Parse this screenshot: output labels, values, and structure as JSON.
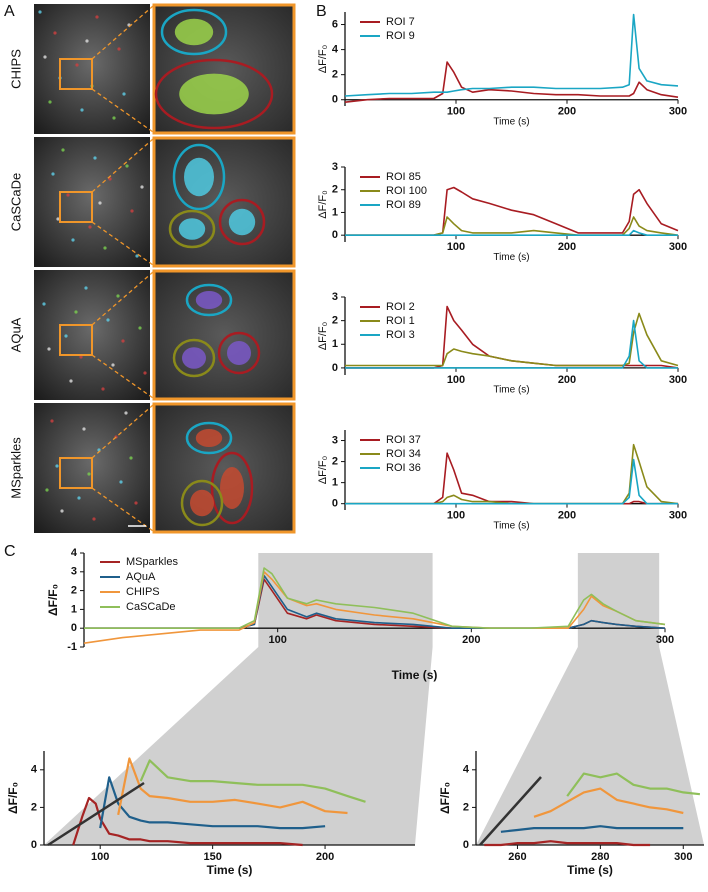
{
  "panel_labels": [
    "A",
    "B",
    "C"
  ],
  "image_labels": [
    "CHIPS",
    "CaSCaDe",
    "AQuA",
    "MSparkles"
  ],
  "chart_data": [
    {
      "type": "line",
      "x_label": "Time (s)",
      "y_label": "ΔF/F₀",
      "xlim": [
        0,
        300
      ],
      "xticks": [
        100,
        200,
        300
      ],
      "ylim": [
        -0.5,
        7
      ],
      "yticks": [
        0,
        2,
        4,
        6
      ],
      "legend": "upper left",
      "x": [
        0,
        20,
        40,
        60,
        80,
        88,
        92,
        98,
        105,
        115,
        130,
        150,
        170,
        190,
        210,
        230,
        250,
        256,
        260,
        265,
        272,
        285,
        300
      ],
      "series": [
        {
          "name": "ROI 7",
          "color": "#a81c22",
          "values": [
            -0.2,
            0,
            0.1,
            0.1,
            0.1,
            0.5,
            3.0,
            2.2,
            1.0,
            0.6,
            0.8,
            0.7,
            0.5,
            0.4,
            0.4,
            0.3,
            0.3,
            0.3,
            0.5,
            1.4,
            0.8,
            0.4,
            0.2
          ]
        },
        {
          "name": "ROI 9",
          "color": "#1aa6c4",
          "values": [
            0.3,
            0.4,
            0.5,
            0.5,
            0.6,
            0.6,
            0.6,
            0.7,
            0.8,
            0.9,
            0.9,
            1.0,
            1.0,
            0.9,
            0.9,
            0.9,
            1.0,
            1.2,
            6.8,
            2.5,
            1.5,
            1.2,
            1.1
          ]
        }
      ]
    },
    {
      "type": "line",
      "x_label": "Time (s)",
      "y_label": "ΔF/F₀",
      "xlim": [
        0,
        300
      ],
      "xticks": [
        100,
        200,
        300
      ],
      "ylim": [
        -0.3,
        3
      ],
      "yticks": [
        0,
        1,
        2,
        3
      ],
      "legend": "upper left",
      "x": [
        0,
        20,
        40,
        60,
        80,
        88,
        92,
        98,
        105,
        115,
        130,
        150,
        170,
        190,
        210,
        230,
        250,
        256,
        260,
        265,
        272,
        285,
        300
      ],
      "series": [
        {
          "name": "ROI 85",
          "color": "#a81c22",
          "values": [
            0,
            0,
            0,
            0,
            0,
            0.1,
            2.0,
            2.1,
            1.9,
            1.6,
            1.4,
            1.1,
            0.9,
            0.5,
            0.1,
            0.1,
            0.1,
            0.6,
            1.8,
            2.0,
            1.4,
            0.5,
            0.2
          ]
        },
        {
          "name": "ROI 100",
          "color": "#8a8a1a",
          "values": [
            0,
            0,
            0,
            0,
            0,
            0.1,
            0.8,
            0.5,
            0.2,
            0.1,
            0.1,
            0.1,
            0.2,
            0.1,
            0,
            0,
            0,
            0.3,
            0.8,
            0.4,
            0.2,
            0.1,
            0
          ]
        },
        {
          "name": "ROI 89",
          "color": "#1aa6c4",
          "values": [
            0,
            0,
            0,
            0,
            0,
            0,
            0,
            0,
            0,
            0,
            0,
            0,
            0,
            0,
            0,
            0,
            0,
            0,
            0.2,
            0.1,
            0,
            0,
            0
          ]
        }
      ]
    },
    {
      "type": "line",
      "x_label": "Time (s)",
      "y_label": "ΔF/F₀",
      "xlim": [
        0,
        300
      ],
      "xticks": [
        100,
        200,
        300
      ],
      "ylim": [
        -0.3,
        3
      ],
      "yticks": [
        0,
        1,
        2,
        3
      ],
      "legend": "upper left",
      "x": [
        0,
        20,
        40,
        60,
        80,
        88,
        92,
        98,
        105,
        115,
        130,
        150,
        170,
        190,
        210,
        230,
        250,
        256,
        260,
        265,
        272,
        285,
        300
      ],
      "series": [
        {
          "name": "ROI 2",
          "color": "#a81c22",
          "values": [
            0,
            0,
            0,
            0,
            0,
            0.1,
            2.6,
            2.0,
            1.6,
            1.0,
            0.5,
            0.3,
            0.2,
            0.1,
            0.1,
            0.1,
            0.1,
            0.1,
            0.1,
            0.1,
            0.1,
            0.1,
            0
          ]
        },
        {
          "name": "ROI 1",
          "color": "#8a8a1a",
          "values": [
            0.1,
            0.1,
            0.1,
            0.1,
            0.1,
            0.1,
            0.6,
            0.8,
            0.7,
            0.6,
            0.5,
            0.3,
            0.2,
            0.1,
            0.1,
            0.1,
            0.1,
            0.2,
            1.5,
            2.3,
            1.4,
            0.3,
            0.1
          ]
        },
        {
          "name": "ROI 3",
          "color": "#1aa6c4",
          "values": [
            0,
            0,
            0,
            0,
            0,
            0,
            0,
            0,
            0,
            0,
            0,
            0,
            0,
            0,
            0,
            0,
            0,
            0.5,
            2.0,
            0.3,
            0,
            0,
            0
          ]
        }
      ]
    },
    {
      "type": "line",
      "x_label": "Time (s)",
      "y_label": "ΔF/F₀",
      "xlim": [
        0,
        300
      ],
      "xticks": [
        100,
        200,
        300
      ],
      "ylim": [
        -0.3,
        3.5
      ],
      "yticks": [
        0,
        1,
        2,
        3
      ],
      "legend": "upper left",
      "x": [
        0,
        20,
        40,
        60,
        80,
        88,
        92,
        98,
        105,
        115,
        130,
        150,
        170,
        190,
        210,
        230,
        250,
        256,
        260,
        265,
        272,
        285,
        300
      ],
      "series": [
        {
          "name": "ROI 37",
          "color": "#a81c22",
          "values": [
            0,
            0,
            0,
            0,
            0,
            0.3,
            2.4,
            1.6,
            0.5,
            0.4,
            0.1,
            0.1,
            0,
            0,
            0,
            0,
            0,
            0,
            0.1,
            0.1,
            0,
            0,
            0
          ]
        },
        {
          "name": "ROI 34",
          "color": "#8a8a1a",
          "values": [
            0,
            0,
            0,
            0,
            0,
            0.1,
            0.3,
            0.4,
            0.2,
            0.1,
            0.1,
            0,
            0,
            0,
            0,
            0,
            0,
            0.5,
            2.8,
            2.0,
            0.8,
            0.1,
            0
          ]
        },
        {
          "name": "ROI 36",
          "color": "#1aa6c4",
          "values": [
            0,
            0,
            0,
            0,
            0,
            0,
            0,
            0,
            0,
            0,
            0,
            0,
            0,
            0,
            0,
            0,
            0,
            0.3,
            2.1,
            0.4,
            0,
            0,
            0
          ]
        }
      ]
    },
    {
      "type": "line",
      "x_label": "Time (s)",
      "y_label": "ΔF/F₀",
      "xlim": [
        0,
        300
      ],
      "xticks": [
        100,
        200,
        300
      ],
      "ylim": [
        -1,
        4
      ],
      "yticks": [
        -1,
        0,
        1,
        2,
        3,
        4
      ],
      "legend": "upper left",
      "highlights": [
        [
          90,
          180
        ],
        [
          255,
          297
        ]
      ],
      "x": [
        0,
        20,
        40,
        60,
        80,
        88,
        93,
        97,
        105,
        115,
        120,
        130,
        150,
        170,
        190,
        210,
        230,
        250,
        258,
        262,
        268,
        275,
        285,
        300
      ],
      "series": [
        {
          "name": "MSparkles",
          "color": "#a52424",
          "values": [
            0,
            0,
            0,
            0,
            0,
            0.2,
            2.6,
            2.0,
            0.8,
            0.5,
            0.7,
            0.4,
            0.2,
            0.1,
            0,
            0,
            0,
            0,
            0.2,
            0.4,
            0.3,
            0.2,
            0.1,
            0
          ]
        },
        {
          "name": "AQuA",
          "color": "#1f5f8b",
          "values": [
            0,
            0,
            0,
            0,
            0,
            0.2,
            2.8,
            2.2,
            1.0,
            0.6,
            0.8,
            0.5,
            0.3,
            0.2,
            0,
            0,
            0,
            0,
            0.2,
            0.4,
            0.3,
            0.2,
            0.1,
            0
          ]
        },
        {
          "name": "CHIPS",
          "color": "#f0963c",
          "values": [
            -0.8,
            -0.5,
            -0.3,
            -0.1,
            -0.1,
            0.3,
            3.0,
            2.6,
            1.6,
            1.2,
            1.3,
            1.0,
            0.7,
            0.5,
            0.1,
            0,
            0,
            0,
            1.0,
            1.7,
            1.2,
            0.9,
            0.4,
            0.2
          ]
        },
        {
          "name": "CaSCaDe",
          "color": "#8fbf5a",
          "values": [
            0,
            0,
            0,
            0,
            0,
            0.4,
            3.2,
            2.9,
            1.6,
            1.3,
            1.5,
            1.3,
            1.1,
            0.8,
            0.1,
            0,
            0,
            0.1,
            1.5,
            1.8,
            1.3,
            0.9,
            0.4,
            0.2
          ]
        }
      ]
    },
    {
      "type": "line",
      "x_label": "Time (s)",
      "y_label": "ΔF/F₀",
      "xlim": [
        75,
        240
      ],
      "xticks": [
        100,
        150,
        200
      ],
      "ylim": [
        0,
        5
      ],
      "yticks": [
        0,
        2,
        4
      ],
      "x": [
        88,
        92,
        95,
        98,
        100,
        104,
        108,
        113,
        118,
        122,
        130,
        140,
        150,
        160,
        170,
        180,
        190,
        200,
        210,
        218
      ],
      "series": [
        {
          "color": "#a52424",
          "values": [
            0,
            1.5,
            2.5,
            2.2,
            1.4,
            0.6,
            0.5,
            0.3,
            0.3,
            0.2,
            0.2,
            0.1,
            0.1,
            0.1,
            0.1,
            0.1,
            0,
            null,
            null,
            null
          ]
        },
        {
          "color": "#1f5f8b",
          "values": [
            null,
            null,
            null,
            null,
            0.9,
            3.6,
            2.2,
            1.5,
            1.3,
            1.2,
            1.2,
            1.1,
            1.0,
            1.0,
            1.0,
            0.9,
            0.9,
            1.0,
            null,
            null
          ]
        },
        {
          "color": "#f0963c",
          "values": [
            null,
            null,
            null,
            null,
            null,
            null,
            1.6,
            4.6,
            3.0,
            2.6,
            2.5,
            2.3,
            2.3,
            2.4,
            2.2,
            2.0,
            2.3,
            1.8,
            1.7,
            null
          ]
        },
        {
          "color": "#8fbf5a",
          "values": [
            null,
            null,
            null,
            null,
            null,
            null,
            null,
            null,
            3.4,
            4.5,
            3.6,
            3.4,
            3.4,
            3.3,
            3.2,
            3.2,
            3.2,
            3.0,
            2.6,
            2.3
          ]
        }
      ]
    },
    {
      "type": "line",
      "x_label": "Time (s)",
      "y_label": "ΔF/F₀",
      "xlim": [
        250,
        305
      ],
      "xticks": [
        260,
        280,
        300
      ],
      "ylim": [
        0,
        5
      ],
      "yticks": [
        0,
        2,
        4
      ],
      "x": [
        252,
        256,
        260,
        264,
        268,
        272,
        276,
        280,
        284,
        288,
        292,
        296,
        300,
        304
      ],
      "series": [
        {
          "color": "#a52424",
          "values": [
            0,
            0,
            0.1,
            0.1,
            0.2,
            0.1,
            0.1,
            0.1,
            0.1,
            0,
            0,
            null,
            null,
            null
          ]
        },
        {
          "color": "#1f5f8b",
          "values": [
            null,
            0.7,
            0.8,
            0.9,
            0.9,
            0.9,
            0.9,
            1.0,
            0.9,
            0.9,
            0.9,
            0.9,
            0.9,
            null
          ]
        },
        {
          "color": "#f0963c",
          "values": [
            null,
            null,
            null,
            1.5,
            1.8,
            2.3,
            2.8,
            3.0,
            2.4,
            2.2,
            2.0,
            1.9,
            1.7,
            null
          ]
        },
        {
          "color": "#8fbf5a",
          "values": [
            null,
            null,
            null,
            null,
            null,
            2.6,
            3.8,
            3.6,
            3.8,
            3.2,
            3.0,
            3.0,
            2.8,
            2.7
          ]
        }
      ]
    }
  ]
}
